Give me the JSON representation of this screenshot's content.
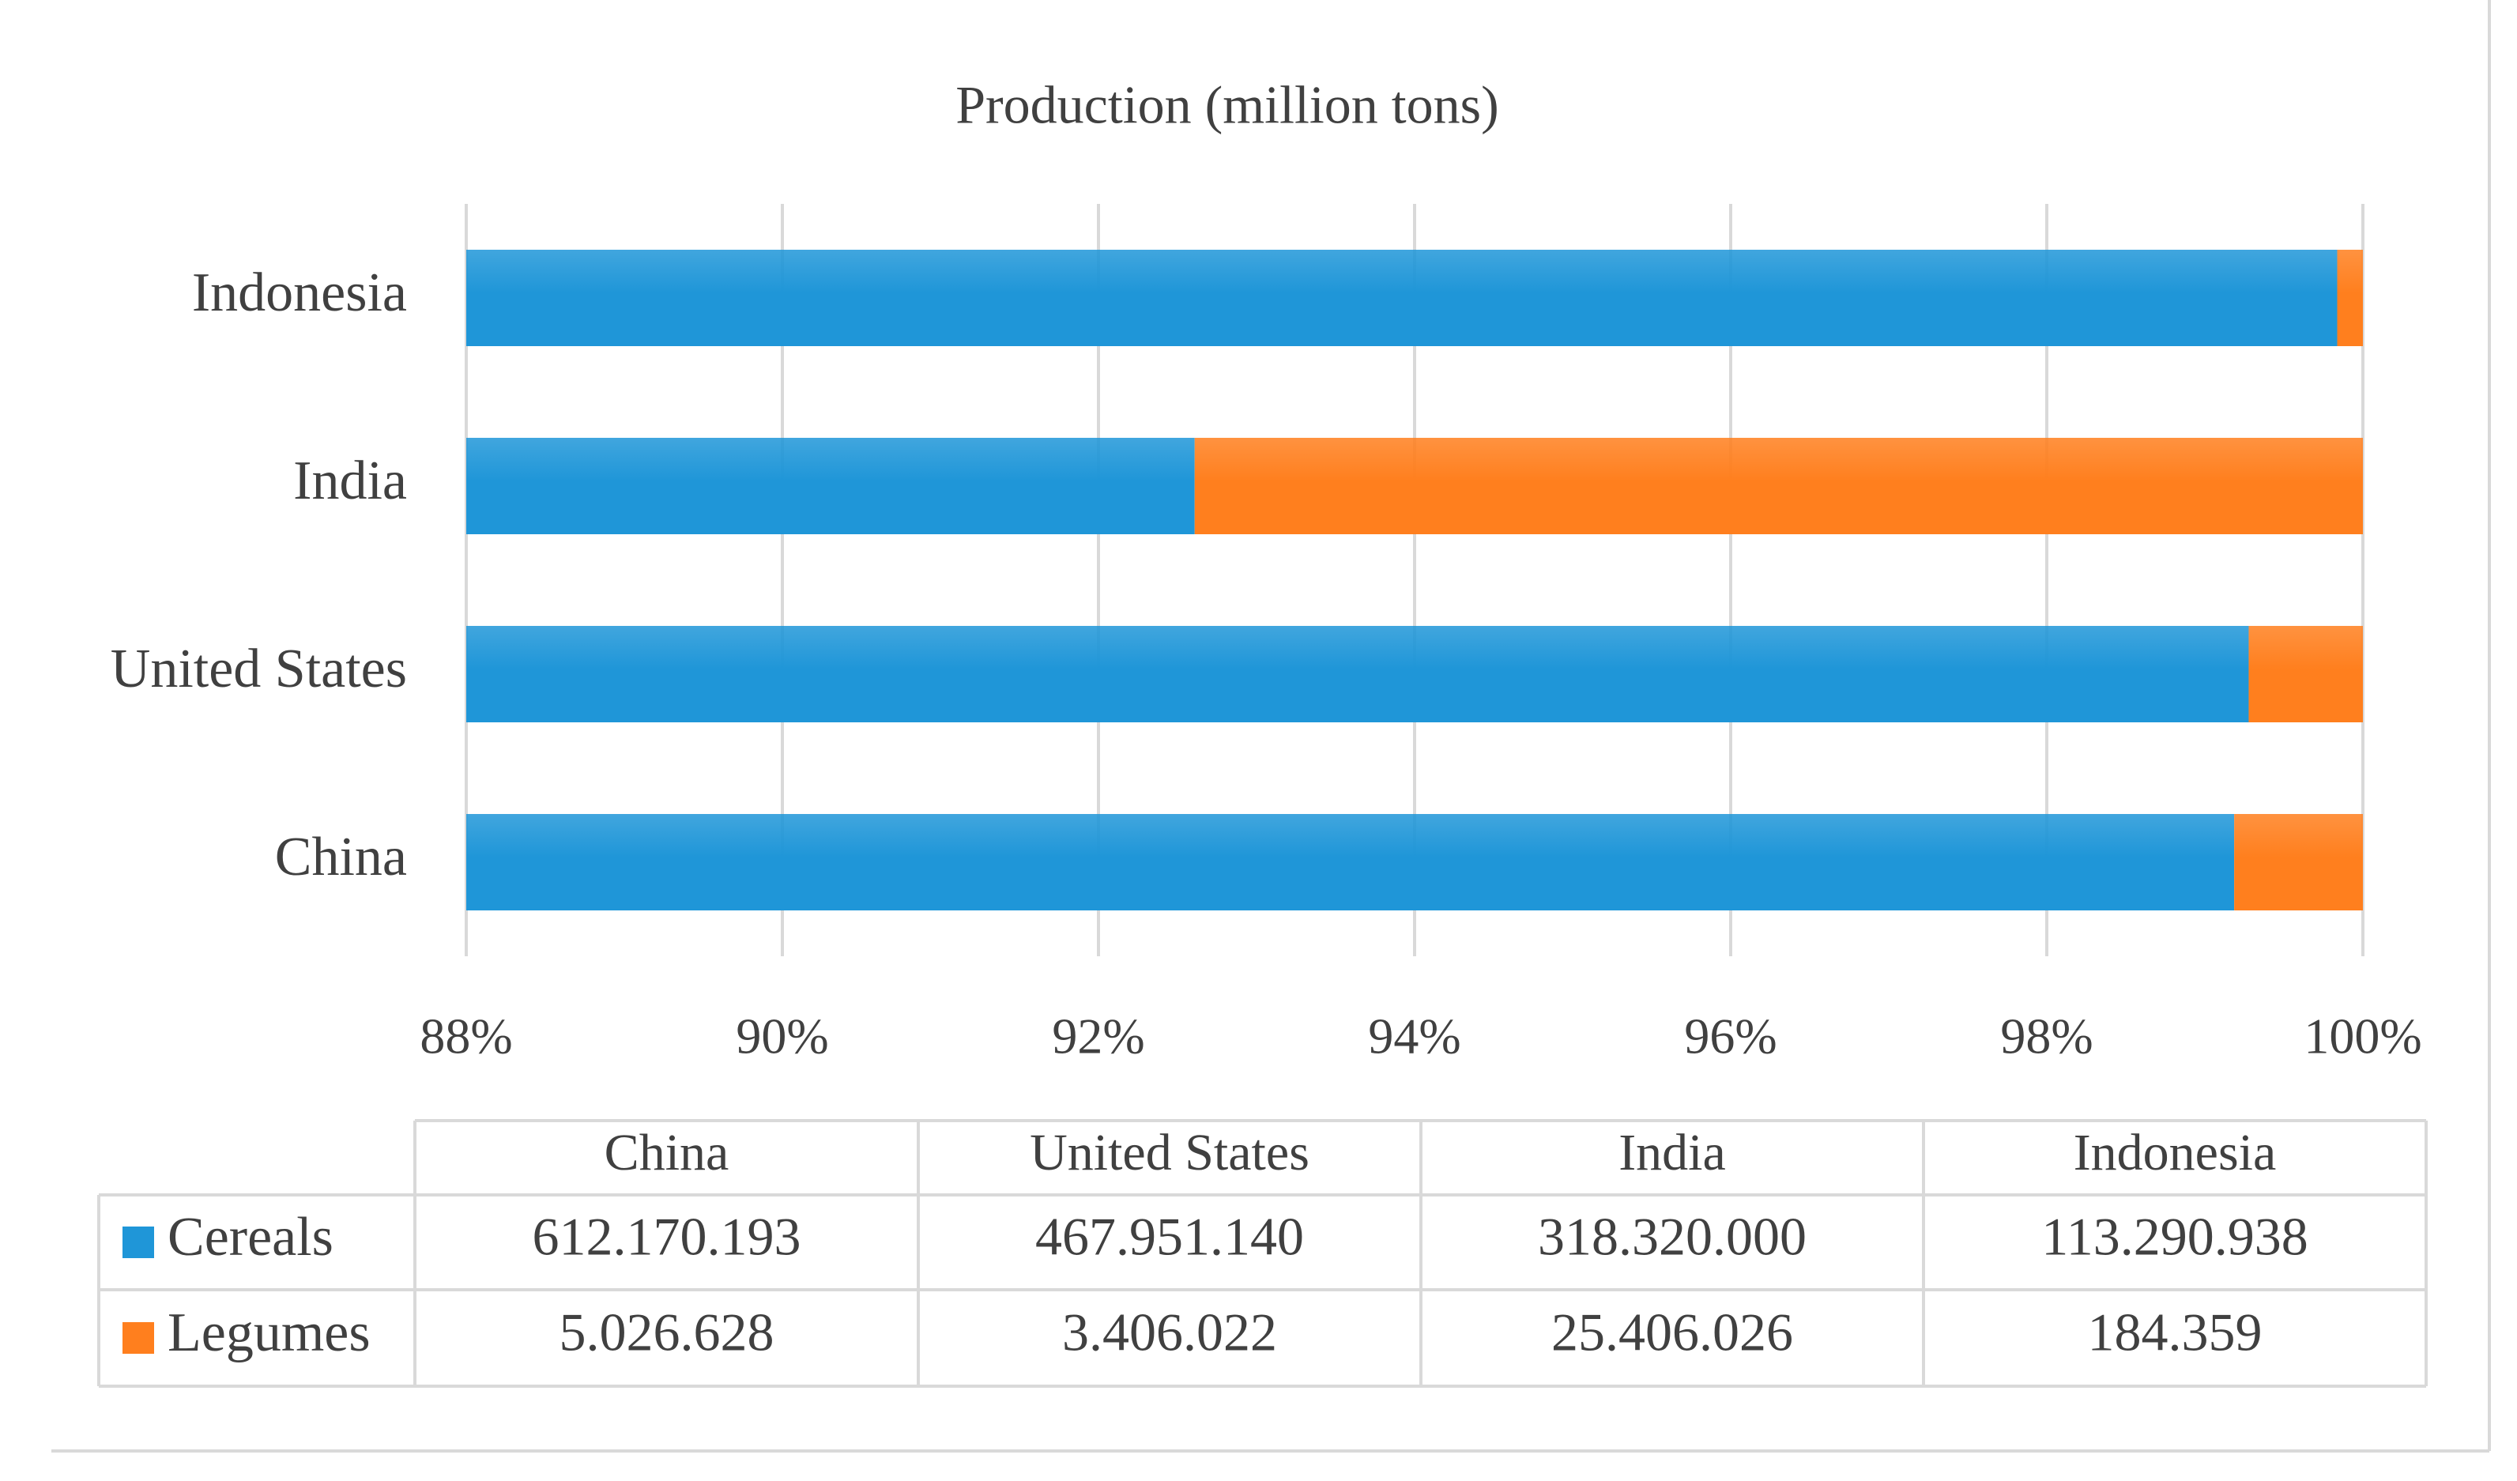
{
  "chart_data": {
    "type": "bar",
    "orientation": "horizontal",
    "stacking": "percent",
    "title": "Production (million tons)",
    "categories": [
      "China",
      "United States",
      "India",
      "Indonesia"
    ],
    "series": [
      {
        "name": "Cereals",
        "color": "#1f96d8",
        "values": [
          "612.170.193",
          "467.951.140",
          "318.320.000",
          "113.290.938"
        ]
      },
      {
        "name": "Legumes",
        "color": "#ff7f1e",
        "values": [
          "5.026.628",
          "3.406.022",
          "25.406.026",
          "184.359"
        ]
      }
    ],
    "x_ticks": [
      "88%",
      "90%",
      "92%",
      "94%",
      "96%",
      "98%",
      "100%"
    ],
    "xlim": [
      88,
      100
    ],
    "grid": "vertical",
    "data_table": true,
    "legend_placement": "data table"
  }
}
